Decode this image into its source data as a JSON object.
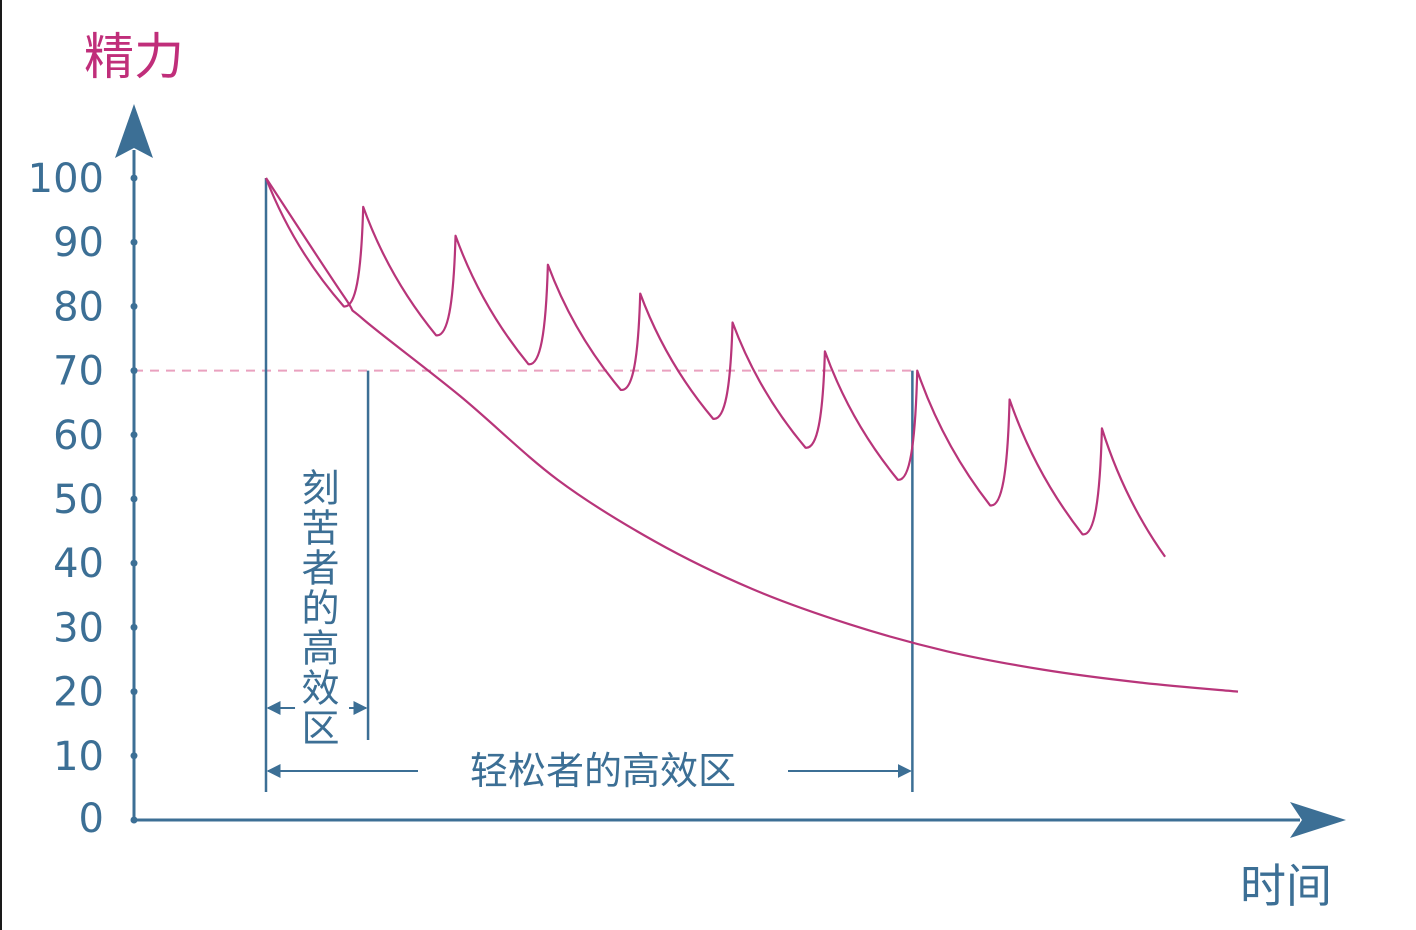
{
  "chart_data": {
    "type": "line",
    "ylabel": "精力",
    "xlabel": "时间",
    "ylim": [
      0,
      100
    ],
    "yticks": [
      "0",
      "10",
      "20",
      "30",
      "40",
      "50",
      "60",
      "70",
      "80",
      "90",
      "100"
    ],
    "threshold": 70,
    "series": [
      {
        "values": [
          [
            0,
            100
          ],
          [
            8,
            81.6
          ],
          [
            10,
            78
          ],
          [
            20,
            66
          ],
          [
            30,
            53
          ],
          [
            40,
            43.4
          ],
          [
            50,
            36
          ],
          [
            60,
            30.5
          ],
          [
            70,
            26.3
          ],
          [
            80,
            23.4
          ],
          [
            90,
            21.4
          ],
          [
            100,
            20
          ]
        ]
      },
      {
        "values": [
          [
            0,
            100
          ],
          [
            8,
            80
          ],
          [
            10,
            95.5
          ],
          [
            17.5,
            75.5
          ],
          [
            19.5,
            91
          ],
          [
            27,
            71
          ],
          [
            29,
            86.5
          ],
          [
            36.5,
            67
          ],
          [
            38.5,
            82
          ],
          [
            46,
            62.5
          ],
          [
            48,
            77.5
          ],
          [
            55.5,
            58
          ],
          [
            57.5,
            73
          ],
          [
            65,
            53
          ],
          [
            67,
            70
          ],
          [
            74.5,
            49
          ],
          [
            76.5,
            65.5
          ],
          [
            84,
            44.5
          ],
          [
            86,
            61
          ],
          [
            92.5,
            41
          ]
        ]
      }
    ],
    "annotations": [
      {
        "text": "刻苦者的高效区",
        "from_x": 0,
        "to_x": 10.5
      },
      {
        "text": "轻松者的高效区",
        "from_x": 0,
        "to_x": 66.5
      }
    ],
    "colors": {
      "curves": "#b8357a",
      "axes": "#3c6f95",
      "threshold": "#e9a1bf"
    }
  }
}
